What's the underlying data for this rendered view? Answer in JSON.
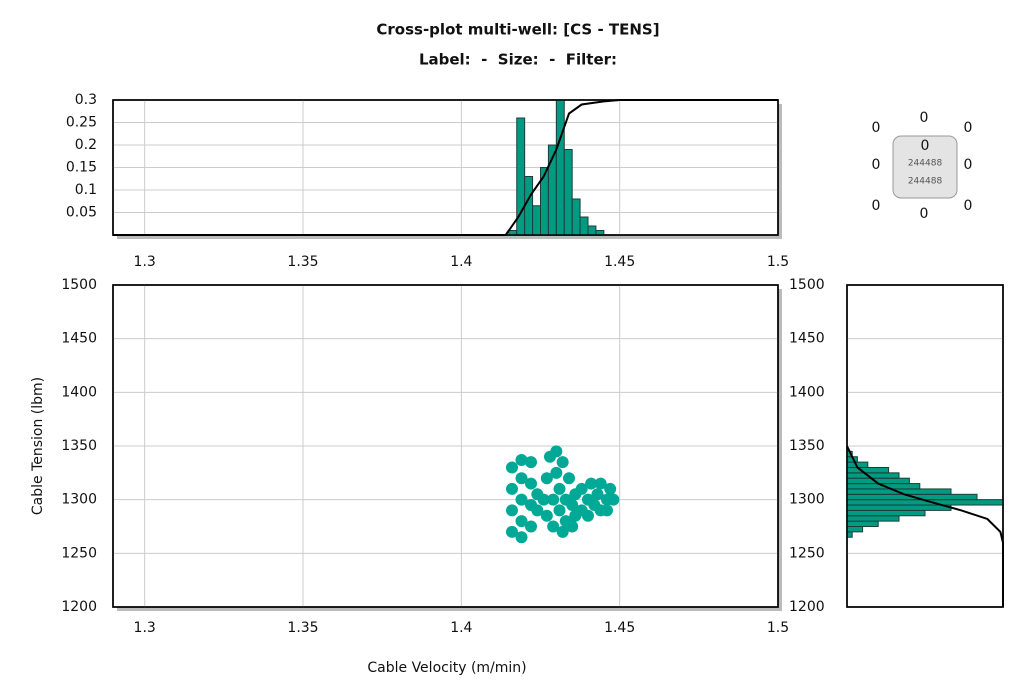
{
  "chart_data": [
    {
      "type": "scatter",
      "title": "Cross-plot multi-well: [CS - TENS]",
      "subtitle": "Label:  -  Size:  -  Filter:",
      "x_label": "Cable Velocity (m/min)",
      "y_label": "Cable Tension (lbm)",
      "color": "#00a896",
      "x": [
        1.416,
        1.416,
        1.416,
        1.416,
        1.419,
        1.419,
        1.419,
        1.419,
        1.419,
        1.422,
        1.422,
        1.422,
        1.422,
        1.424,
        1.424,
        1.426,
        1.427,
        1.427,
        1.428,
        1.429,
        1.429,
        1.43,
        1.43,
        1.431,
        1.431,
        1.432,
        1.432,
        1.433,
        1.433,
        1.434,
        1.435,
        1.435,
        1.436,
        1.436,
        1.438,
        1.438,
        1.44,
        1.44,
        1.441,
        1.442,
        1.443,
        1.444,
        1.444,
        1.446,
        1.447,
        1.448,
        1.446
      ],
      "y": [
        1270,
        1290,
        1310,
        1330,
        1265,
        1280,
        1300,
        1320,
        1337,
        1275,
        1295,
        1315,
        1335,
        1290,
        1305,
        1300,
        1285,
        1320,
        1340,
        1275,
        1300,
        1345,
        1325,
        1290,
        1310,
        1270,
        1335,
        1280,
        1300,
        1320,
        1275,
        1295,
        1285,
        1305,
        1290,
        1310,
        1285,
        1300,
        1315,
        1295,
        1305,
        1290,
        1315,
        1300,
        1310,
        1300,
        1290
      ],
      "xlim": [
        1.29,
        1.5
      ],
      "xticks": [
        1.3,
        1.35,
        1.4,
        1.45,
        1.5
      ],
      "ylim": [
        1200,
        1500
      ],
      "yticks": [
        1200,
        1250,
        1300,
        1350,
        1400,
        1450,
        1500
      ],
      "grid": true
    },
    {
      "type": "histogram",
      "orientation": "vertical",
      "color": "#009b82",
      "bins": [
        1.415,
        1.4175,
        1.42,
        1.4225,
        1.425,
        1.4275,
        1.43,
        1.4325,
        1.435,
        1.4375,
        1.44,
        1.4425,
        1.445
      ],
      "values": [
        0.01,
        0.26,
        0.13,
        0.065,
        0.15,
        0.2,
        0.3,
        0.19,
        0.08,
        0.04,
        0.02,
        0.01
      ],
      "curve": {
        "x": [
          1.29,
          1.414,
          1.418,
          1.422,
          1.426,
          1.43,
          1.434,
          1.438,
          1.445,
          1.45,
          1.5
        ],
        "y": [
          0,
          0,
          0.04,
          0.09,
          0.13,
          0.19,
          0.27,
          0.29,
          0.297,
          0.3,
          0.3
        ]
      },
      "xlim": [
        1.29,
        1.5
      ],
      "xticks": [
        1.3,
        1.35,
        1.4,
        1.45,
        1.5
      ],
      "ylim": [
        0,
        0.3
      ],
      "yticks": [
        0.05,
        0.1,
        0.15,
        0.2,
        0.25,
        0.3
      ],
      "grid": true
    },
    {
      "type": "histogram",
      "orientation": "horizontal",
      "color": "#009b82",
      "bins": [
        1265,
        1270,
        1275,
        1280,
        1285,
        1290,
        1295,
        1300,
        1305,
        1310,
        1315,
        1320,
        1325,
        1330,
        1335,
        1340,
        1345
      ],
      "values": [
        0.01,
        0.03,
        0.06,
        0.1,
        0.15,
        0.2,
        0.3,
        0.25,
        0.2,
        0.14,
        0.12,
        0.1,
        0.08,
        0.04,
        0.02,
        0.01
      ],
      "curve": {
        "x": [
          0,
          0.02,
          0.06,
          0.11,
          0.16,
          0.22,
          0.27,
          0.295,
          0.3,
          0.3
        ],
        "y": [
          1350,
          1330,
          1315,
          1305,
          1298,
          1290,
          1282,
          1270,
          1260,
          1200
        ]
      },
      "xlim": [
        0,
        0.3
      ],
      "ylim": [
        1200,
        1500
      ],
      "yticks": [
        1200,
        1250,
        1300,
        1350,
        1400,
        1450,
        1500
      ],
      "grid": true
    }
  ],
  "size_legend": {
    "outer": [
      0,
      0,
      0,
      0,
      0,
      0,
      0,
      0
    ],
    "inner": [
      0,
      244488,
      244488
    ]
  }
}
